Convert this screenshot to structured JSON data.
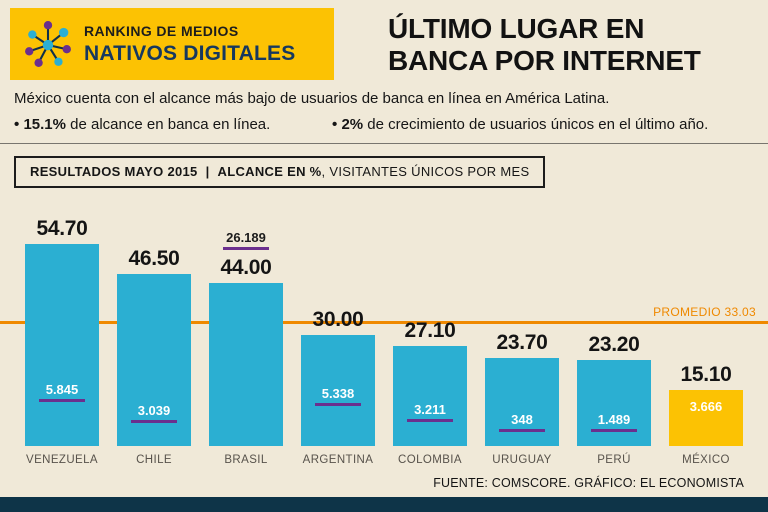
{
  "header": {
    "badge": {
      "line1": "RANKING DE MEDIOS",
      "line2": "NATIVOS DIGITALES"
    },
    "title_line1": "ÚLTIMO LUGAR EN",
    "title_line2": "BANCA POR INTERNET"
  },
  "intro": {
    "lead": "México cuenta con el alcance más bajo de usuarios de banca en línea en América Latina.",
    "bullets": [
      {
        "marker": "•",
        "strong": "15.1%",
        "rest": " de alcance en banca en línea."
      },
      {
        "marker": "•",
        "strong": "2%",
        "rest": " de crecimiento de usuarios únicos en el último año."
      }
    ]
  },
  "results_bar": {
    "strong1": "RESULTADOS MAYO 2015",
    "divider": "|",
    "strong2": "ALCANCE EN %",
    "rest": ", VISITANTES ÚNICOS POR MES"
  },
  "chart_data": {
    "type": "bar",
    "title": "RESULTADOS MAYO 2015 | ALCANCE EN %, VISITANTES ÚNICOS POR MES",
    "categories": [
      "VENEZUELA",
      "CHILE",
      "BRASIL",
      "ARGENTINA",
      "COLOMBIA",
      "URUGUAY",
      "PERÚ",
      "MÉXICO"
    ],
    "series": [
      {
        "name": "Alcance en %",
        "values": [
          54.7,
          46.5,
          44.0,
          30.0,
          27.1,
          23.7,
          23.2,
          15.1
        ]
      },
      {
        "name": "Visitantes únicos por mes (miles)",
        "values": [
          5845,
          3039,
          26189,
          5338,
          3211,
          348,
          1489,
          3666
        ]
      }
    ],
    "value_labels": [
      "54.70",
      "46.50",
      "44.00",
      "30.00",
      "27.10",
      "23.70",
      "23.20",
      "15.10"
    ],
    "visitor_labels": [
      "5.845",
      "3.039",
      "26.189",
      "5.338",
      "3.211",
      "348",
      "1.489",
      "3.666"
    ],
    "visitor_marker": [
      true,
      true,
      true,
      true,
      true,
      true,
      true,
      false
    ],
    "average": 33.03,
    "average_label": "PROMEDIO 33.03",
    "ylim": [
      0,
      60
    ],
    "grid": false,
    "legend": "none",
    "colors": {
      "bar": "#2bafd2",
      "highlight_bar": "#fcc203",
      "highlight_index": 7,
      "average_line": "#ef8900",
      "marker": "#6b2f8e"
    }
  },
  "footer": {
    "source": "FUENTE: COMSCORE. GRÁFICO: EL ECONOMISTA"
  }
}
